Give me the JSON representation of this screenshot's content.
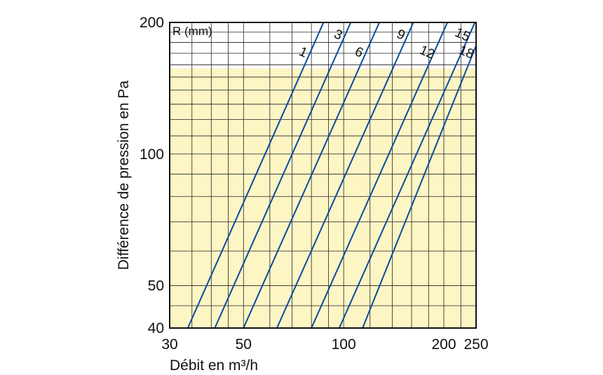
{
  "chart_data": {
    "type": "line",
    "xlabel": "Débit en m³/h",
    "ylabel": "Différence de pression en Pa",
    "x_scale": "log",
    "y_scale": "log",
    "xlim": [
      30,
      250
    ],
    "ylim": [
      40,
      200
    ],
    "x_ticks": [
      {
        "value": 30,
        "label": "30"
      },
      {
        "value": 50,
        "label": "50"
      },
      {
        "value": 100,
        "label": "100"
      },
      {
        "value": 200,
        "label": "200"
      },
      {
        "value": 250,
        "label": "250"
      }
    ],
    "y_ticks": [
      {
        "value": 40,
        "label": "40"
      },
      {
        "value": 50,
        "label": "50"
      },
      {
        "value": 100,
        "label": "100"
      },
      {
        "value": 200,
        "label": "200"
      }
    ],
    "x_grid": [
      30,
      35,
      40,
      45,
      50,
      60,
      70,
      80,
      90,
      100,
      120,
      140,
      160,
      180,
      200,
      225,
      250
    ],
    "y_grid": [
      40,
      45,
      50,
      60,
      70,
      80,
      90,
      100,
      110,
      120,
      130,
      140,
      150,
      160,
      170,
      180,
      190,
      200
    ],
    "grid": true,
    "shaded_band": {
      "y_from": 40,
      "y_to": 157,
      "color": "#fdf5c4"
    },
    "legend_title": "R (mm)",
    "line_color": "#0a4aa0",
    "series": [
      {
        "name": "1",
        "x": [
          34,
          87
        ],
        "y": [
          40,
          200
        ]
      },
      {
        "name": "3",
        "x": [
          41,
          105
        ],
        "y": [
          40,
          200
        ]
      },
      {
        "name": "6",
        "x": [
          50,
          128
        ],
        "y": [
          40,
          200
        ]
      },
      {
        "name": "9",
        "x": [
          63,
          162
        ],
        "y": [
          40,
          200
        ]
      },
      {
        "name": "12",
        "x": [
          80,
          205
        ],
        "y": [
          40,
          200
        ]
      },
      {
        "name": "15",
        "x": [
          97,
          248
        ],
        "y": [
          40,
          200
        ]
      },
      {
        "name": "18",
        "x": [
          114,
          250
        ],
        "y": [
          40,
          177
        ]
      }
    ]
  }
}
